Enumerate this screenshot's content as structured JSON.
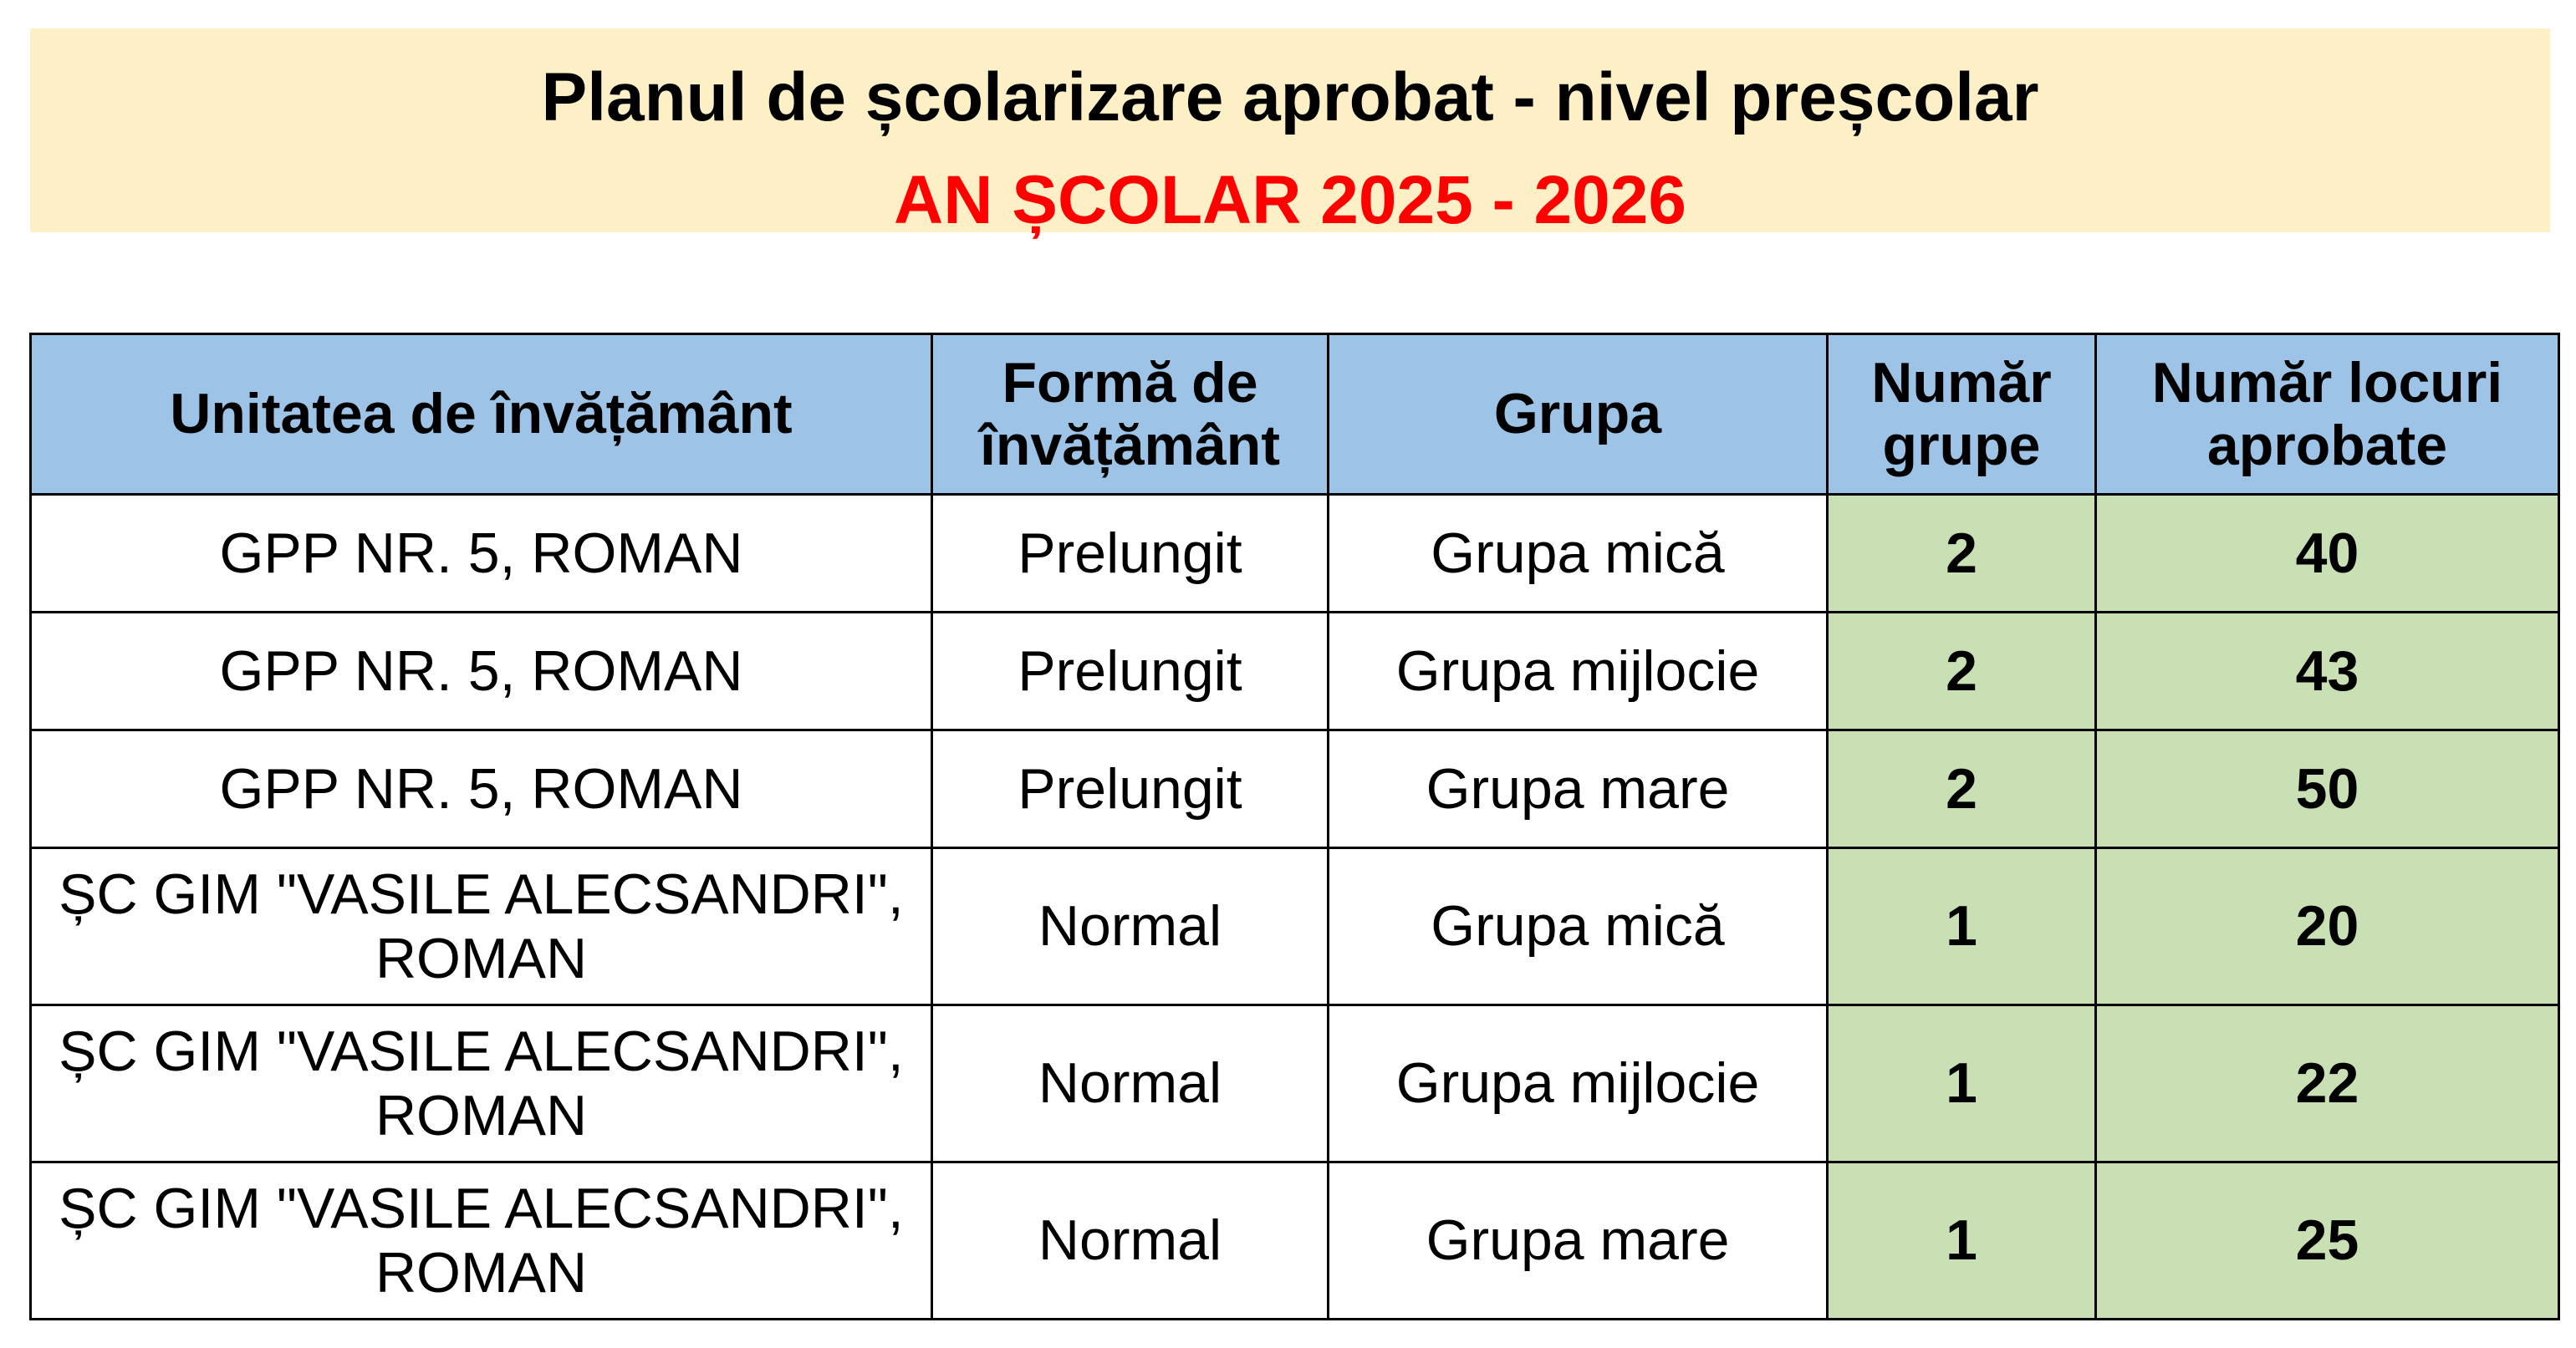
{
  "header": {
    "title": "Planul de școlarizare aprobat - nivel preșcolar",
    "subtitle": "AN ȘCOLAR 2025 - 2026",
    "colors": {
      "banner_background": "#fdefc6",
      "subtitle_color": "#ff0000",
      "table_header_background": "#9dc3e6",
      "numeric_cells_background": "#c8e0b4"
    }
  },
  "table": {
    "columns": [
      "Unitatea de învățământ",
      "Formă de învățământ",
      "Grupa",
      "Număr grupe",
      "Număr locuri aprobate"
    ],
    "rows": [
      {
        "unit": "GPP NR. 5, ROMAN",
        "form": "Prelungit",
        "group": "Grupa mică",
        "groups_count": "2",
        "places": "40"
      },
      {
        "unit": "GPP NR. 5, ROMAN",
        "form": "Prelungit",
        "group": "Grupa mijlocie",
        "groups_count": "2",
        "places": "43"
      },
      {
        "unit": "GPP NR. 5, ROMAN",
        "form": "Prelungit",
        "group": "Grupa mare",
        "groups_count": "2",
        "places": "50"
      },
      {
        "unit": "ȘC GIM \"VASILE ALECSANDRI\", ROMAN",
        "form": "Normal",
        "group": "Grupa mică",
        "groups_count": "1",
        "places": "20"
      },
      {
        "unit": "ȘC GIM \"VASILE ALECSANDRI\", ROMAN",
        "form": "Normal",
        "group": "Grupa mijlocie",
        "groups_count": "1",
        "places": "22"
      },
      {
        "unit": "ȘC GIM \"VASILE ALECSANDRI\", ROMAN",
        "form": "Normal",
        "group": "Grupa mare",
        "groups_count": "1",
        "places": "25"
      }
    ]
  }
}
